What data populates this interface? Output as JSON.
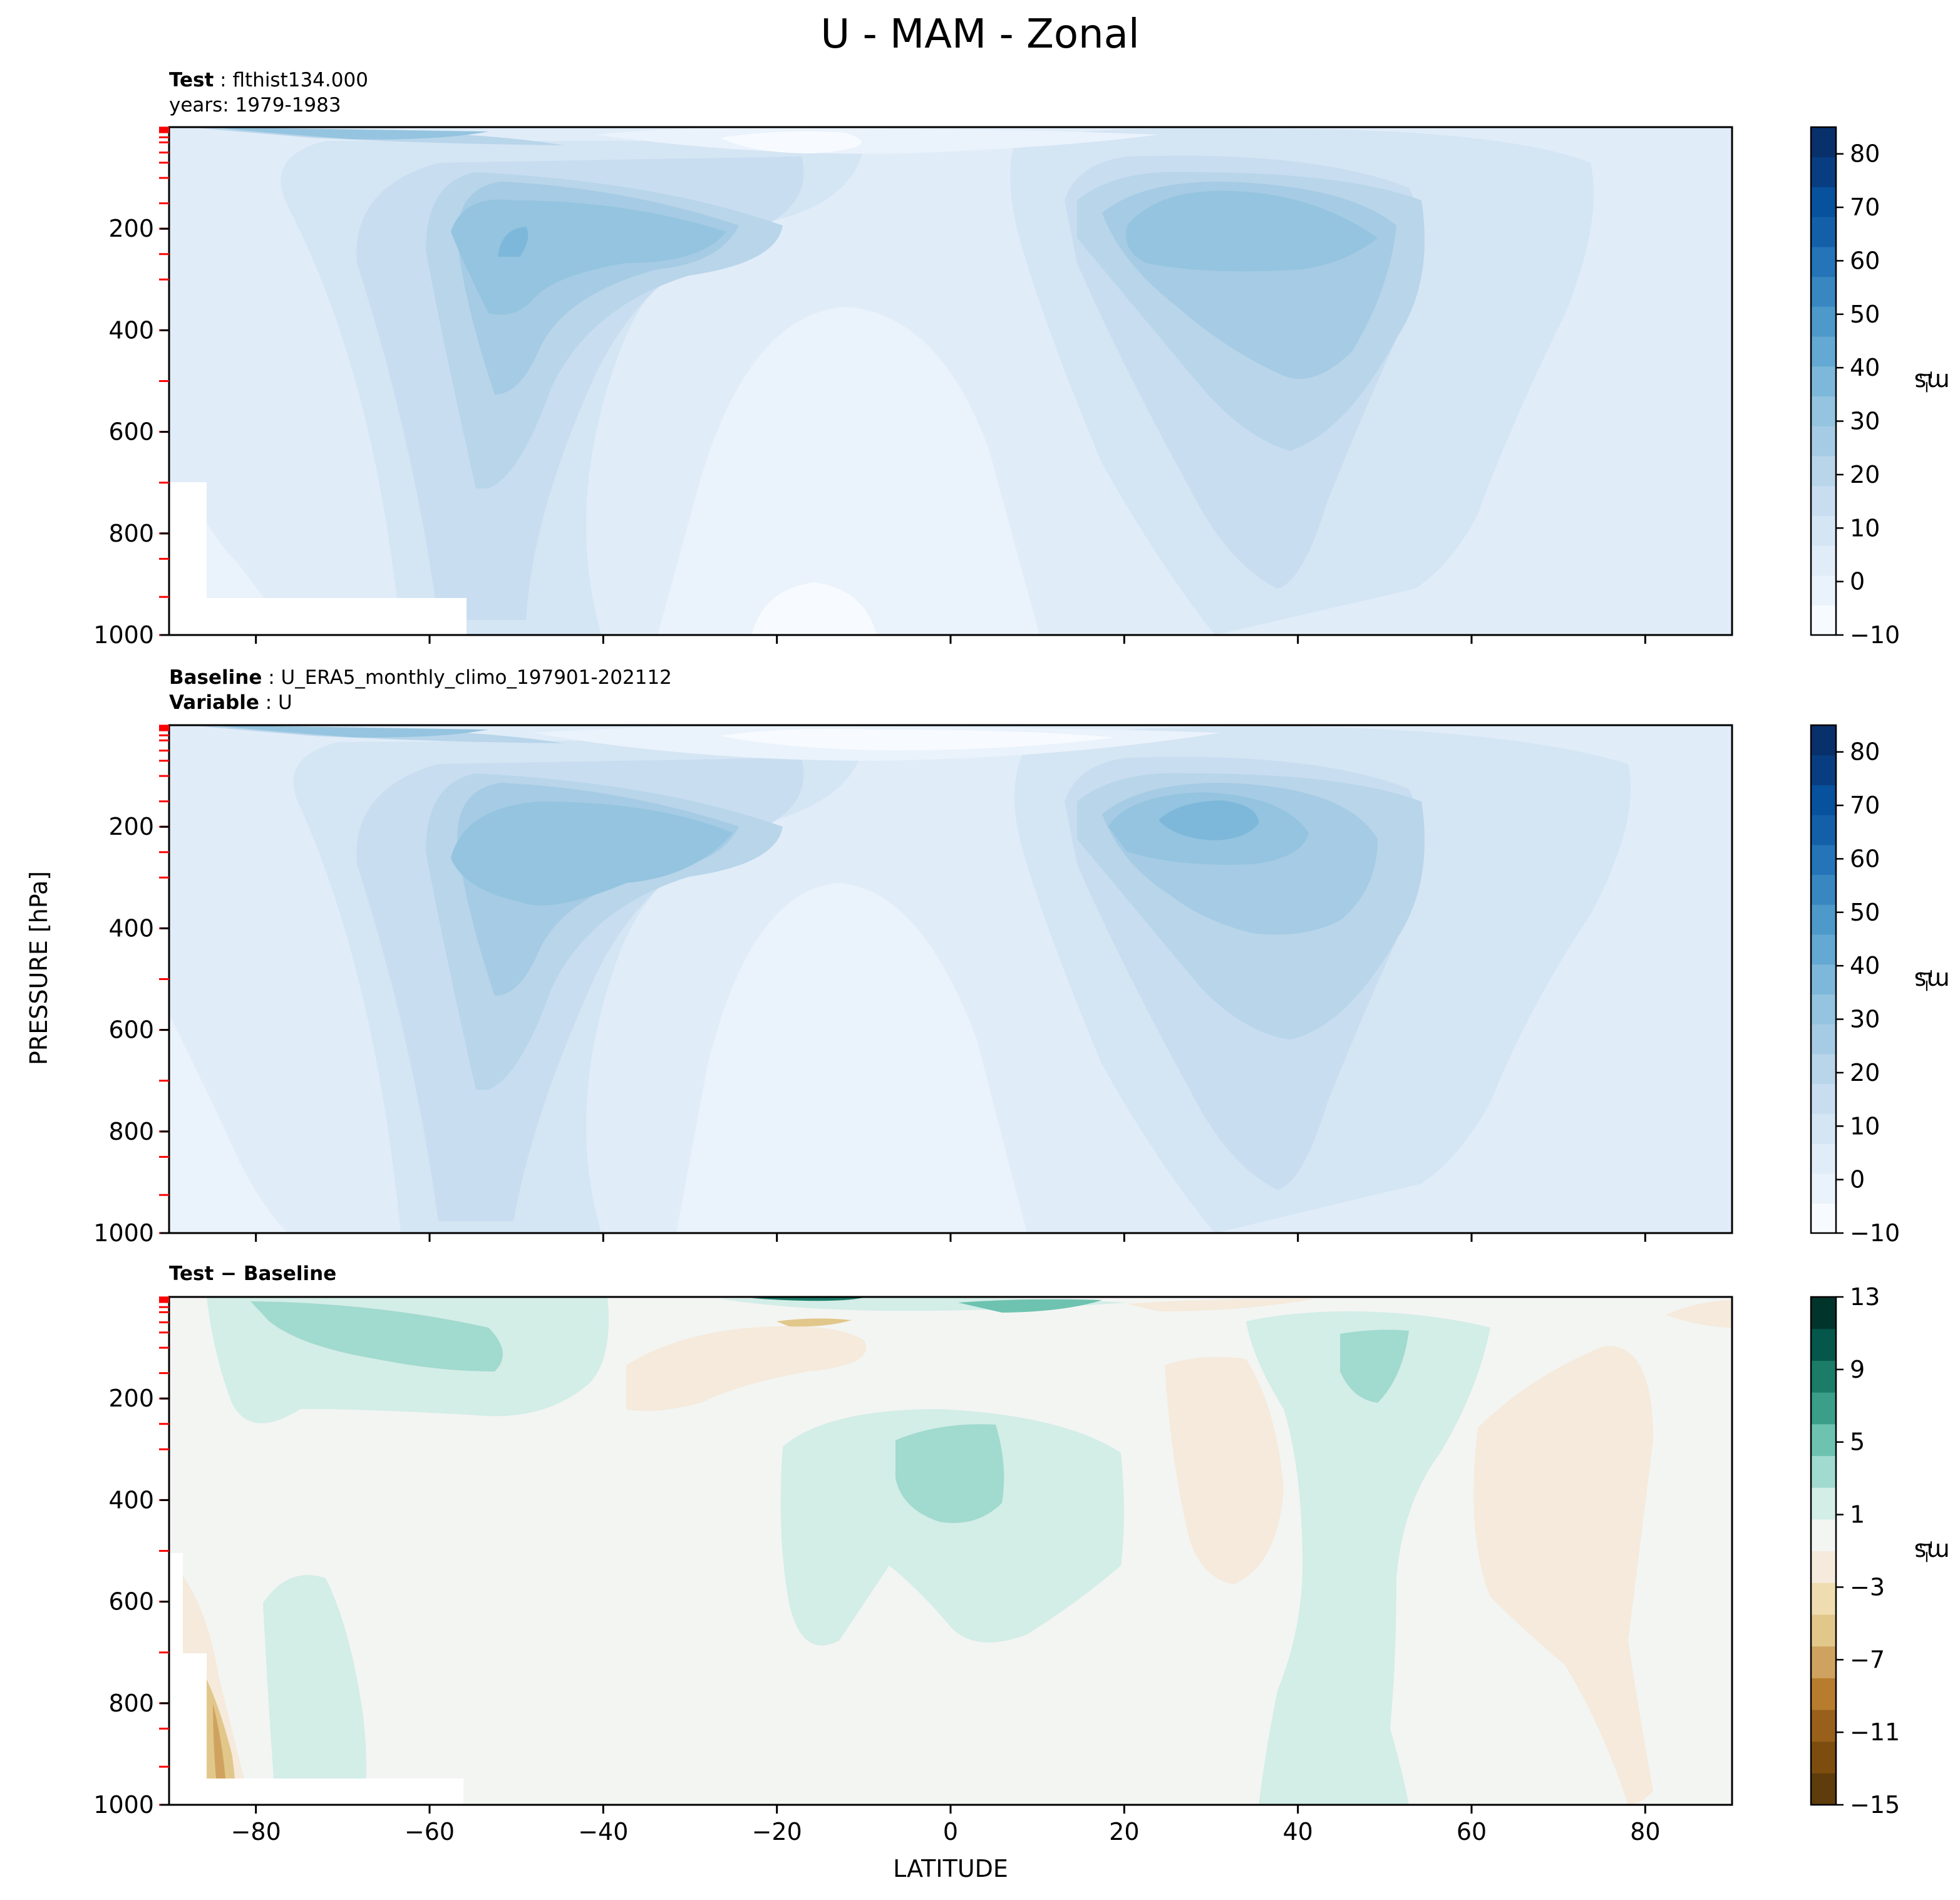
{
  "figure": {
    "title": "U - MAM - Zonal",
    "ylabel": "PRESSURE [hPa]",
    "xlabel": "LATITUDE"
  },
  "panels": [
    {
      "id": "test",
      "title_lines": [
        {
          "bold": "Test",
          "text": "flthist134.000"
        },
        {
          "bold": "",
          "text": "years: 1979-1983"
        }
      ]
    },
    {
      "id": "baseline",
      "title_lines": [
        {
          "bold": "Baseline",
          "text": "U_ERA5_monthly_climo_197901-202112"
        },
        {
          "bold": "Variable",
          "text": "U"
        }
      ]
    },
    {
      "id": "diff",
      "title_lines": [
        {
          "bold": "Test − Baseline",
          "text": ""
        }
      ]
    }
  ],
  "colorbars": [
    {
      "panel": "test",
      "unit": "ms",
      "unit_exp": "−1",
      "ticks": [
        "−10",
        "0",
        "10",
        "20",
        "30",
        "40",
        "50",
        "60",
        "70",
        "80"
      ],
      "tick_values": [
        -10,
        0,
        10,
        20,
        30,
        40,
        50,
        60,
        70,
        80
      ],
      "range": [
        -10,
        85
      ]
    },
    {
      "panel": "baseline",
      "unit": "ms",
      "unit_exp": "−1",
      "ticks": [
        "−10",
        "0",
        "10",
        "20",
        "30",
        "40",
        "50",
        "60",
        "70",
        "80"
      ],
      "tick_values": [
        -10,
        0,
        10,
        20,
        30,
        40,
        50,
        60,
        70,
        80
      ],
      "range": [
        -10,
        85
      ]
    },
    {
      "panel": "diff",
      "unit": "ms",
      "unit_exp": "−1",
      "ticks": [
        "−15",
        "−11",
        "−7",
        "−3",
        "1",
        "5",
        "9",
        "13"
      ],
      "tick_values": [
        -15,
        -11,
        -7,
        -3,
        1,
        5,
        9,
        13
      ],
      "range": [
        -15,
        13
      ]
    }
  ],
  "colors": {
    "blues": [
      "#f7fbff",
      "#eaf2fb",
      "#e0ecf8",
      "#d4e5f4",
      "#c8ddf0",
      "#b8d5ea",
      "#a6cbe4",
      "#94c4df",
      "#7db8da",
      "#64a9d3",
      "#4d99ca",
      "#3887c0",
      "#2474b7",
      "#1460a8",
      "#08519c",
      "#083e81",
      "#08306b"
    ],
    "diverging": [
      "#5e3c0b",
      "#7c4d0e",
      "#98601a",
      "#b87c2e",
      "#cfa35f",
      "#e2c78b",
      "#efdcb0",
      "#f5eadb",
      "#f3f5f3",
      "#d3ede7",
      "#a1dacf",
      "#6dc3b0",
      "#3a9e89",
      "#1b7c67",
      "#04574a",
      "#01352c"
    ],
    "frame": "#000000",
    "pressure_tick_marker": "#ff0000"
  },
  "chart_data": [
    {
      "type": "heatmap",
      "panel": "test",
      "title": "Test: flthist134.000 (years: 1979-1983)",
      "xlabel": "LATITUDE",
      "ylabel": "PRESSURE [hPa]",
      "xlim": [
        -90,
        90
      ],
      "ylim": [
        1000,
        0
      ],
      "xticks": [
        -80,
        -60,
        -40,
        -20,
        0,
        20,
        40,
        60,
        80
      ],
      "xticklabels": [
        "−80",
        "−60",
        "−40",
        "−20",
        "0",
        "20",
        "40",
        "60",
        "80"
      ],
      "yticks": [
        200,
        400,
        600,
        800,
        1000
      ],
      "yticklabels": [
        "200",
        "400",
        "600",
        "800",
        "1000"
      ],
      "contour_levels": [
        -10,
        -5,
        0,
        5,
        10,
        15,
        20,
        25,
        30,
        35,
        40,
        45,
        50,
        55,
        60,
        65,
        70,
        75,
        80,
        85
      ],
      "features": [
        {
          "name": "SH subtropical jet",
          "lat": -50,
          "pressure_hPa": 220,
          "max_ms": 37
        },
        {
          "name": "NH subtropical jet",
          "lat": 33,
          "pressure_hPa": 200,
          "max_ms": 33
        },
        {
          "name": "SH stratospheric westerlies",
          "lat": -62,
          "pressure_hPa": 5,
          "max_ms": 40
        },
        {
          "name": "Tropical easterlies",
          "lat": -15,
          "pressure_hPa": 35,
          "min_ms": -10
        }
      ]
    },
    {
      "type": "heatmap",
      "panel": "baseline",
      "title": "Baseline: U_ERA5_monthly_climo_197901-202112 (Variable: U)",
      "xlabel": "LATITUDE",
      "ylabel": "PRESSURE [hPa]",
      "xlim": [
        -90,
        90
      ],
      "ylim": [
        1000,
        0
      ],
      "xticks": [
        -80,
        -60,
        -40,
        -20,
        0,
        20,
        40,
        60,
        80
      ],
      "xticklabels": [
        "−80",
        "−60",
        "−40",
        "−20",
        "0",
        "20",
        "40",
        "60",
        "80"
      ],
      "yticks": [
        200,
        400,
        600,
        800,
        1000
      ],
      "yticklabels": [
        "200",
        "400",
        "600",
        "800",
        "1000"
      ],
      "contour_levels": [
        -10,
        -5,
        0,
        5,
        10,
        15,
        20,
        25,
        30,
        35,
        40,
        45,
        50,
        55,
        60,
        65,
        70,
        75,
        80,
        85
      ],
      "features": [
        {
          "name": "SH subtropical jet",
          "lat": -48,
          "pressure_hPa": 240,
          "max_ms": 32
        },
        {
          "name": "NH subtropical jet",
          "lat": 32,
          "pressure_hPa": 190,
          "max_ms": 36
        },
        {
          "name": "SH stratospheric westerlies",
          "lat": -62,
          "pressure_hPa": 5,
          "max_ms": 40
        },
        {
          "name": "Tropical easterlies",
          "lat": -10,
          "pressure_hPa": 30,
          "min_ms": -10
        }
      ]
    },
    {
      "type": "heatmap",
      "panel": "diff",
      "title": "Test − Baseline",
      "xlabel": "LATITUDE",
      "ylabel": "PRESSURE [hPa]",
      "xlim": [
        -90,
        90
      ],
      "ylim": [
        1000,
        0
      ],
      "xticks": [
        -80,
        -60,
        -40,
        -20,
        0,
        20,
        40,
        60,
        80
      ],
      "xticklabels": [
        "−80",
        "−60",
        "−40",
        "−20",
        "0",
        "20",
        "40",
        "60",
        "80"
      ],
      "yticks": [
        200,
        400,
        600,
        800,
        1000
      ],
      "yticklabels": [
        "200",
        "400",
        "600",
        "800",
        "1000"
      ],
      "contour_levels": [
        -15,
        -13,
        -11,
        -9,
        -7,
        -5,
        -3,
        -1,
        1,
        3,
        5,
        7,
        9,
        11,
        13
      ],
      "features": [
        {
          "name": "positive core",
          "lat": 0,
          "pressure_hPa": 280,
          "value_ms": 3
        },
        {
          "name": "positive core",
          "lat": 48,
          "pressure_hPa": 150,
          "value_ms": 3
        },
        {
          "name": "positive band",
          "lat": -65,
          "pressure_hPa": 100,
          "value_ms": 3
        },
        {
          "name": "negative band",
          "lat": 28,
          "pressure_hPa": 400,
          "value_ms": -2
        },
        {
          "name": "negative band",
          "lat": 67,
          "pressure_hPa": 500,
          "value_ms": -2
        },
        {
          "name": "strong stratospheric dipole",
          "lat": -8,
          "pressure_hPa": 5,
          "value_ms": 9
        }
      ]
    }
  ]
}
